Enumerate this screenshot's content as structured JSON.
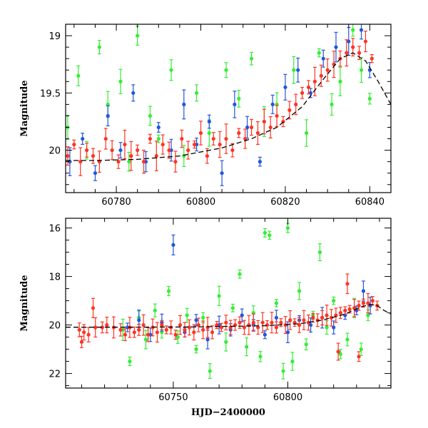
{
  "colors": {
    "green": "#33ee33",
    "blue": "#2255dd",
    "red": "#ff3322",
    "model": "#000000"
  },
  "chart_data": [
    {
      "type": "scatter",
      "title": "",
      "xlabel": "",
      "ylabel": "Magnitude",
      "xlim": [
        60768,
        60845
      ],
      "ylim": [
        20.37,
        18.9
      ],
      "y_inverted": true,
      "xticks": [
        60780,
        60800,
        60820,
        60840
      ],
      "yticks": [
        19,
        19.5,
        20
      ],
      "series": [
        {
          "color": "green",
          "points": [
            [
              60768.5,
              19.8
            ],
            [
              60771,
              19.35
            ],
            [
              60773,
              20.0
            ],
            [
              60776,
              19.1
            ],
            [
              60778,
              19.6
            ],
            [
              60781,
              19.4
            ],
            [
              60783,
              20.1
            ],
            [
              60785,
              19.0
            ],
            [
              60788,
              19.7
            ],
            [
              60790,
              19.9
            ],
            [
              60793,
              19.3
            ],
            [
              60796,
              20.05
            ],
            [
              60799,
              19.5
            ],
            [
              60802,
              19.85
            ],
            [
              60806,
              19.3
            ],
            [
              60809,
              19.55
            ],
            [
              60812,
              19.2
            ],
            [
              60815,
              19.75
            ],
            [
              60818,
              19.6
            ],
            [
              60822,
              19.3
            ],
            [
              60825,
              19.85
            ],
            [
              60828,
              19.15
            ],
            [
              60831,
              19.6
            ],
            [
              60833,
              19.4
            ],
            [
              60836,
              18.95
            ],
            [
              60838,
              19.3
            ],
            [
              60840,
              19.55
            ]
          ]
        },
        {
          "color": "blue",
          "points": [
            [
              60769,
              20.1
            ],
            [
              60772,
              19.9
            ],
            [
              60775,
              20.2
            ],
            [
              60778,
              19.7
            ],
            [
              60781,
              20.0
            ],
            [
              60784,
              19.5
            ],
            [
              60787,
              20.1
            ],
            [
              60790,
              19.8
            ],
            [
              60793,
              20.0
            ],
            [
              60796,
              19.6
            ],
            [
              60799,
              19.95
            ],
            [
              60802,
              19.75
            ],
            [
              60805,
              20.2
            ],
            [
              60808,
              19.6
            ],
            [
              60811,
              19.8
            ],
            [
              60814,
              20.1
            ],
            [
              60817,
              19.6
            ],
            [
              60820,
              19.45
            ],
            [
              60823,
              19.3
            ],
            [
              60826,
              19.5
            ],
            [
              60829,
              19.2
            ],
            [
              60832,
              19.1
            ],
            [
              60835,
              19.05
            ],
            [
              60838,
              18.95
            ],
            [
              60840,
              19.3
            ]
          ]
        },
        {
          "color": "red",
          "points": [
            [
              60768.5,
              20.05
            ],
            [
              60770,
              19.95
            ],
            [
              60771.5,
              20.1
            ],
            [
              60773,
              20.0
            ],
            [
              60774.5,
              20.05
            ],
            [
              60776,
              20.1
            ],
            [
              60777.5,
              19.9
            ],
            [
              60779,
              20.0
            ],
            [
              60780.5,
              20.1
            ],
            [
              60782,
              19.95
            ],
            [
              60783.5,
              20.05
            ],
            [
              60785,
              20.0
            ],
            [
              60786.5,
              20.1
            ],
            [
              60788,
              19.9
            ],
            [
              60789.5,
              20.05
            ],
            [
              60791,
              19.95
            ],
            [
              60792.5,
              20.0
            ],
            [
              60794,
              20.1
            ],
            [
              60795.5,
              19.9
            ],
            [
              60797,
              20.0
            ],
            [
              60798.5,
              19.95
            ],
            [
              60800,
              19.85
            ],
            [
              60801.5,
              20.05
            ],
            [
              60803,
              19.9
            ],
            [
              60804.5,
              19.95
            ],
            [
              60806,
              19.9
            ],
            [
              60807.5,
              20.0
            ],
            [
              60809,
              19.85
            ],
            [
              60810.5,
              19.9
            ],
            [
              60812,
              19.8
            ],
            [
              60813.5,
              19.85
            ],
            [
              60815,
              19.75
            ],
            [
              60816.5,
              19.8
            ],
            [
              60818,
              19.7
            ],
            [
              60819.5,
              19.75
            ],
            [
              60821,
              19.65
            ],
            [
              60822.5,
              19.6
            ],
            [
              60824,
              19.5
            ],
            [
              60825.5,
              19.45
            ],
            [
              60827,
              19.4
            ],
            [
              60828.5,
              19.35
            ],
            [
              60830,
              19.3
            ],
            [
              60831.5,
              19.25
            ],
            [
              60833,
              19.2
            ],
            [
              60834.5,
              19.15
            ],
            [
              60836,
              19.1
            ],
            [
              60837.5,
              19.15
            ],
            [
              60839,
              19.05
            ],
            [
              60840.5,
              19.2
            ]
          ]
        }
      ],
      "model_curve": [
        [
          60768,
          20.09
        ],
        [
          60775,
          20.09
        ],
        [
          60785,
          20.08
        ],
        [
          60795,
          20.05
        ],
        [
          60805,
          19.98
        ],
        [
          60812,
          19.9
        ],
        [
          60818,
          19.8
        ],
        [
          60824,
          19.62
        ],
        [
          60829,
          19.38
        ],
        [
          60833,
          19.2
        ],
        [
          60836,
          19.15
        ],
        [
          60839,
          19.22
        ],
        [
          60842,
          19.4
        ],
        [
          60845,
          19.6
        ]
      ]
    },
    {
      "type": "scatter",
      "title": "",
      "xlabel": "HJD−2400000",
      "ylabel": "Magnitude",
      "xlim": [
        60703,
        60845
      ],
      "ylim": [
        22.6,
        15.6
      ],
      "y_inverted": true,
      "xticks": [
        60750,
        60800
      ],
      "yticks": [
        16,
        18,
        20,
        22
      ],
      "series": [
        {
          "color": "green",
          "points": [
            [
              60728,
              20.2
            ],
            [
              60731,
              21.5
            ],
            [
              60735,
              19.7
            ],
            [
              60738,
              20.6
            ],
            [
              60742,
              19.4
            ],
            [
              60745,
              20.3
            ],
            [
              60748,
              18.6
            ],
            [
              60752,
              20.5
            ],
            [
              60756,
              19.6
            ],
            [
              60760,
              21.0
            ],
            [
              60763,
              19.7
            ],
            [
              60766,
              21.9
            ],
            [
              60770,
              18.8
            ],
            [
              60773,
              20.7
            ],
            [
              60776,
              19.3
            ],
            [
              60779,
              17.9
            ],
            [
              60782,
              20.9
            ],
            [
              60785,
              19.5
            ],
            [
              60788,
              21.3
            ],
            [
              60790,
              16.2
            ],
            [
              60792,
              16.3
            ],
            [
              60795,
              19.1
            ],
            [
              60798,
              21.9
            ],
            [
              60800,
              16.0
            ],
            [
              60802,
              21.5
            ],
            [
              60805,
              18.6
            ],
            [
              60808,
              20.8
            ],
            [
              60811,
              19.6
            ],
            [
              60814,
              17.0
            ],
            [
              60817,
              20.1
            ],
            [
              60820,
              19.0
            ],
            [
              60823,
              21.2
            ],
            [
              60826,
              20.6
            ],
            [
              60829,
              19.3
            ],
            [
              60832,
              21.0
            ],
            [
              60835,
              19.6
            ]
          ]
        },
        {
          "color": "blue",
          "points": [
            [
              60730,
              20.1
            ],
            [
              60735,
              19.8
            ],
            [
              60740,
              20.4
            ],
            [
              60745,
              19.9
            ],
            [
              60750,
              16.7
            ],
            [
              60755,
              20.3
            ],
            [
              60760,
              19.8
            ],
            [
              60765,
              20.6
            ],
            [
              60770,
              20.0
            ],
            [
              60775,
              20.2
            ],
            [
              60780,
              19.6
            ],
            [
              60785,
              20.0
            ],
            [
              60790,
              20.4
            ],
            [
              60795,
              19.7
            ],
            [
              60800,
              20.3
            ],
            [
              60805,
              19.8
            ],
            [
              60810,
              20.0
            ],
            [
              60815,
              19.7
            ],
            [
              60820,
              20.1
            ],
            [
              60825,
              19.6
            ],
            [
              60830,
              19.4
            ],
            [
              60833,
              18.6
            ],
            [
              60836,
              19.2
            ]
          ]
        },
        {
          "color": "red",
          "points": [
            [
              60709,
              20.2
            ],
            [
              60710,
              20.7
            ],
            [
              60711,
              20.3
            ],
            [
              60713,
              20.4
            ],
            [
              60715,
              19.3
            ],
            [
              60716,
              20.1
            ],
            [
              60719,
              20.1
            ],
            [
              60721,
              20.0
            ],
            [
              60724,
              20.1
            ],
            [
              60727,
              20.2
            ],
            [
              60729,
              20.4
            ],
            [
              60731,
              20.1
            ],
            [
              60733,
              20.3
            ],
            [
              60735,
              20.2
            ],
            [
              60737,
              20.0
            ],
            [
              60739,
              20.4
            ],
            [
              60741,
              20.1
            ],
            [
              60743,
              20.3
            ],
            [
              60745,
              20.0
            ],
            [
              60747,
              20.2
            ],
            [
              60749,
              20.1
            ],
            [
              60751,
              20.4
            ],
            [
              60753,
              20.0
            ],
            [
              60755,
              20.2
            ],
            [
              60757,
              20.1
            ],
            [
              60759,
              20.3
            ],
            [
              60761,
              20.0
            ],
            [
              60763,
              20.2
            ],
            [
              60765,
              20.1
            ],
            [
              60767,
              20.3
            ],
            [
              60769,
              20.0
            ],
            [
              60771,
              20.1
            ],
            [
              60773,
              19.9
            ],
            [
              60775,
              20.1
            ],
            [
              60777,
              20.0
            ],
            [
              60779,
              19.9
            ],
            [
              60781,
              20.1
            ],
            [
              60783,
              20.0
            ],
            [
              60785,
              19.9
            ],
            [
              60787,
              20.1
            ],
            [
              60789,
              19.9
            ],
            [
              60791,
              20.0
            ],
            [
              60793,
              19.9
            ],
            [
              60795,
              20.1
            ],
            [
              60797,
              19.9
            ],
            [
              60799,
              20.0
            ],
            [
              60801,
              19.8
            ],
            [
              60803,
              19.9
            ],
            [
              60805,
              20.0
            ],
            [
              60807,
              19.8
            ],
            [
              60809,
              19.9
            ],
            [
              60811,
              19.7
            ],
            [
              60813,
              19.8
            ],
            [
              60815,
              19.7
            ],
            [
              60817,
              19.6
            ],
            [
              60819,
              19.7
            ],
            [
              60821,
              19.6
            ],
            [
              60823,
              19.5
            ],
            [
              60825,
              19.4
            ],
            [
              60827,
              19.35
            ],
            [
              60829,
              19.3
            ],
            [
              60831,
              19.2
            ],
            [
              60833,
              19.1
            ],
            [
              60835,
              19.1
            ],
            [
              60837,
              19.0
            ],
            [
              60839,
              19.2
            ],
            [
              60822,
              21.1
            ],
            [
              60826,
              18.3
            ],
            [
              60831,
              21.3
            ]
          ]
        }
      ],
      "model_curve": [
        [
          60703,
          20.09
        ],
        [
          60730,
          20.09
        ],
        [
          60760,
          20.08
        ],
        [
          60790,
          20.03
        ],
        [
          60805,
          19.95
        ],
        [
          60815,
          19.8
        ],
        [
          60825,
          19.55
        ],
        [
          60832,
          19.25
        ],
        [
          60836,
          19.15
        ],
        [
          60839,
          19.2
        ],
        [
          60842,
          19.4
        ],
        [
          60845,
          19.55
        ]
      ]
    }
  ]
}
